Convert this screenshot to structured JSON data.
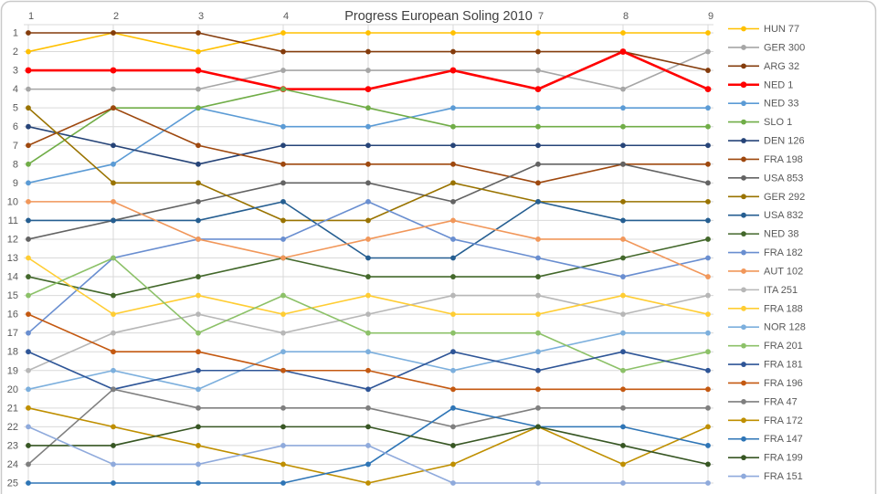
{
  "title": "Progress European Soling 2010",
  "colors": {
    "background": "#FFFFFF",
    "border": "#C9C9C9",
    "grid": "#D9D9D9",
    "axis_text": "#595959",
    "title_text": "#404040"
  },
  "axes": {
    "x_visible_ticks": [
      {
        "label": "1",
        "col": 1
      },
      {
        "label": "2",
        "col": 2
      },
      {
        "label": "3",
        "col": 3
      },
      {
        "label": "4",
        "col": 4
      },
      {
        "label": "7",
        "col": 7
      },
      {
        "label": "8",
        "col": 8
      },
      {
        "label": "9",
        "col": 9
      }
    ],
    "y_ticks": [
      "1",
      "2",
      "3",
      "4",
      "5",
      "6",
      "7",
      "8",
      "9",
      "10",
      "11",
      "12",
      "13",
      "14",
      "15",
      "16",
      "17",
      "18",
      "19",
      "20",
      "21",
      "22",
      "23",
      "24",
      "25"
    ]
  },
  "legend": {
    "position": "right",
    "entries": [
      "HUN 77",
      "GER 300",
      "ARG 32",
      "NED 1",
      "NED 33",
      "SLO 1",
      "DEN 126",
      "FRA 198",
      "USA 853",
      "GER 292",
      "USA 832",
      "NED 38",
      "FRA 182",
      "AUT 102",
      "ITA 251",
      "FRA 188",
      "NOR 128",
      "FRA 201",
      "FRA 181",
      "FRA 196",
      "FRA 47",
      "FRA 172",
      "FRA 147",
      "FRA 199",
      "FRA 151"
    ]
  },
  "chart_data": {
    "type": "line",
    "subtype": "bump-ranking",
    "title": "Progress European Soling 2010",
    "x": [
      1,
      2,
      3,
      4,
      5,
      6,
      7,
      8,
      9
    ],
    "x_axis_position": "top",
    "y_axis": {
      "min": 1,
      "max": 25,
      "inverted": true,
      "meaning": "rank (1 = leader), ties share rank"
    },
    "grid": true,
    "legend_position": "right",
    "series": [
      {
        "name": "HUN 77",
        "color": "#FFC000",
        "width": 1.6,
        "values": [
          2,
          1,
          2,
          1,
          1,
          1,
          1,
          1,
          1
        ]
      },
      {
        "name": "GER 300",
        "color": "#A6A6A6",
        "width": 1.6,
        "values": [
          4,
          4,
          4,
          3,
          3,
          3,
          3,
          4,
          2
        ]
      },
      {
        "name": "ARG 32",
        "color": "#843C0C",
        "width": 1.6,
        "values": [
          1,
          1,
          1,
          2,
          2,
          2,
          2,
          2,
          3
        ]
      },
      {
        "name": "NED 1",
        "color": "#FF0000",
        "width": 2.6,
        "values": [
          3,
          3,
          3,
          4,
          4,
          3,
          4,
          2,
          4
        ]
      },
      {
        "name": "NED 33",
        "color": "#5B9BD5",
        "width": 1.6,
        "values": [
          9,
          8,
          5,
          6,
          6,
          5,
          5,
          5,
          5
        ]
      },
      {
        "name": "SLO 1",
        "color": "#70AD47",
        "width": 1.6,
        "values": [
          8,
          5,
          5,
          4,
          5,
          6,
          6,
          6,
          6
        ]
      },
      {
        "name": "DEN 126",
        "color": "#264478",
        "width": 1.6,
        "values": [
          6,
          7,
          8,
          7,
          7,
          7,
          7,
          7,
          7
        ]
      },
      {
        "name": "FRA 198",
        "color": "#9E480E",
        "width": 1.6,
        "values": [
          7,
          5,
          7,
          8,
          8,
          8,
          9,
          8,
          8
        ]
      },
      {
        "name": "USA 853",
        "color": "#636363",
        "width": 1.6,
        "values": [
          12,
          11,
          10,
          9,
          9,
          10,
          8,
          8,
          9
        ]
      },
      {
        "name": "GER 292",
        "color": "#997300",
        "width": 1.6,
        "values": [
          5,
          9,
          9,
          11,
          11,
          9,
          10,
          10,
          10
        ]
      },
      {
        "name": "USA 832",
        "color": "#255E91",
        "width": 1.6,
        "values": [
          11,
          11,
          11,
          10,
          13,
          13,
          10,
          11,
          11
        ]
      },
      {
        "name": "NED 38",
        "color": "#43682B",
        "width": 1.6,
        "values": [
          14,
          15,
          14,
          13,
          14,
          14,
          14,
          13,
          12
        ]
      },
      {
        "name": "FRA 182",
        "color": "#698ED0",
        "width": 1.6,
        "values": [
          17,
          13,
          12,
          12,
          10,
          12,
          13,
          14,
          13
        ]
      },
      {
        "name": "AUT 102",
        "color": "#F1975A",
        "width": 1.6,
        "values": [
          10,
          10,
          12,
          13,
          12,
          11,
          12,
          12,
          14
        ]
      },
      {
        "name": "ITA 251",
        "color": "#B7B7B7",
        "width": 1.6,
        "values": [
          19,
          17,
          16,
          17,
          16,
          15,
          15,
          16,
          15
        ]
      },
      {
        "name": "FRA 188",
        "color": "#FFCD33",
        "width": 1.6,
        "values": [
          13,
          16,
          15,
          16,
          15,
          16,
          16,
          15,
          16
        ]
      },
      {
        "name": "NOR 128",
        "color": "#7CAFDD",
        "width": 1.6,
        "values": [
          20,
          19,
          20,
          18,
          18,
          19,
          18,
          17,
          17
        ]
      },
      {
        "name": "FRA 201",
        "color": "#8CC168",
        "width": 1.6,
        "values": [
          15,
          13,
          17,
          15,
          17,
          17,
          17,
          19,
          18
        ]
      },
      {
        "name": "FRA 181",
        "color": "#2E5597",
        "width": 1.6,
        "values": [
          18,
          20,
          19,
          19,
          20,
          18,
          19,
          18,
          19
        ]
      },
      {
        "name": "FRA 196",
        "color": "#C45911",
        "width": 1.6,
        "values": [
          16,
          18,
          18,
          19,
          19,
          20,
          20,
          20,
          20
        ]
      },
      {
        "name": "FRA 47",
        "color": "#7F7F7F",
        "width": 1.6,
        "values": [
          24,
          20,
          21,
          21,
          21,
          22,
          21,
          21,
          21
        ]
      },
      {
        "name": "FRA 172",
        "color": "#BF8F00",
        "width": 1.6,
        "values": [
          21,
          22,
          23,
          24,
          25,
          24,
          22,
          24,
          22
        ]
      },
      {
        "name": "FRA 147",
        "color": "#2E75B6",
        "width": 1.6,
        "values": [
          25,
          25,
          25,
          25,
          24,
          21,
          22,
          22,
          23
        ]
      },
      {
        "name": "FRA 199",
        "color": "#375623",
        "width": 1.6,
        "values": [
          23,
          23,
          22,
          22,
          22,
          23,
          22,
          23,
          24
        ]
      },
      {
        "name": "FRA 151",
        "color": "#8FAADC",
        "width": 1.6,
        "values": [
          22,
          24,
          24,
          23,
          23,
          25,
          25,
          25,
          25
        ]
      }
    ]
  }
}
